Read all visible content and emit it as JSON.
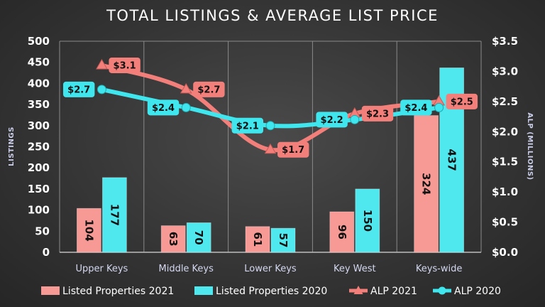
{
  "colors": {
    "listed_2021": "#f79a96",
    "listed_2020": "#4fe8ee",
    "alp_2021": "#f37f7b",
    "alp_2020": "#3fe6ee",
    "grid": "#8a8a8a"
  },
  "chart_data": {
    "type": "bar",
    "title": "TOTAL LISTINGS & AVERAGE LIST PRICE",
    "categories": [
      "Upper Keys",
      "Middle Keys",
      "Lower Keys",
      "Key West",
      "Keys-wide"
    ],
    "ylabel": "LISTINGS",
    "y2label": "ALP (MILLIONS)",
    "ylim": [
      0,
      500
    ],
    "y2lim": [
      0,
      3.5
    ],
    "y_ticks": [
      "0",
      "50",
      "100",
      "150",
      "200",
      "250",
      "300",
      "350",
      "400",
      "450",
      "500"
    ],
    "y2_ticks": [
      "$0.0",
      "$0.5",
      "$1.0",
      "$1.5",
      "$2.0",
      "$2.5",
      "$3.0",
      "$3.5"
    ],
    "grid": "vertical",
    "legend_position": "bottom",
    "series": [
      {
        "name": "Listed Properties 2021",
        "type": "bar",
        "axis": "left",
        "values": [
          104,
          63,
          61,
          96,
          324
        ],
        "labels": [
          "104",
          "63",
          "61",
          "96",
          "324"
        ]
      },
      {
        "name": "Listed Properties 2020",
        "type": "bar",
        "axis": "left",
        "values": [
          177,
          70,
          57,
          150,
          437
        ],
        "labels": [
          "177",
          "70",
          "57",
          "150",
          "437"
        ]
      },
      {
        "name": "ALP 2021",
        "type": "line",
        "axis": "right",
        "marker": "triangle",
        "values": [
          3.1,
          2.7,
          1.7,
          2.3,
          2.5
        ],
        "labels": [
          "$3.1",
          "$2.7",
          "$1.7",
          "$2.3",
          "$2.5"
        ]
      },
      {
        "name": "ALP 2020",
        "type": "line",
        "axis": "right",
        "marker": "circle",
        "values": [
          2.7,
          2.4,
          2.1,
          2.2,
          2.4
        ],
        "labels": [
          "$2.7",
          "$2.4",
          "$2.1",
          "$2.2",
          "$2.4"
        ]
      }
    ]
  }
}
